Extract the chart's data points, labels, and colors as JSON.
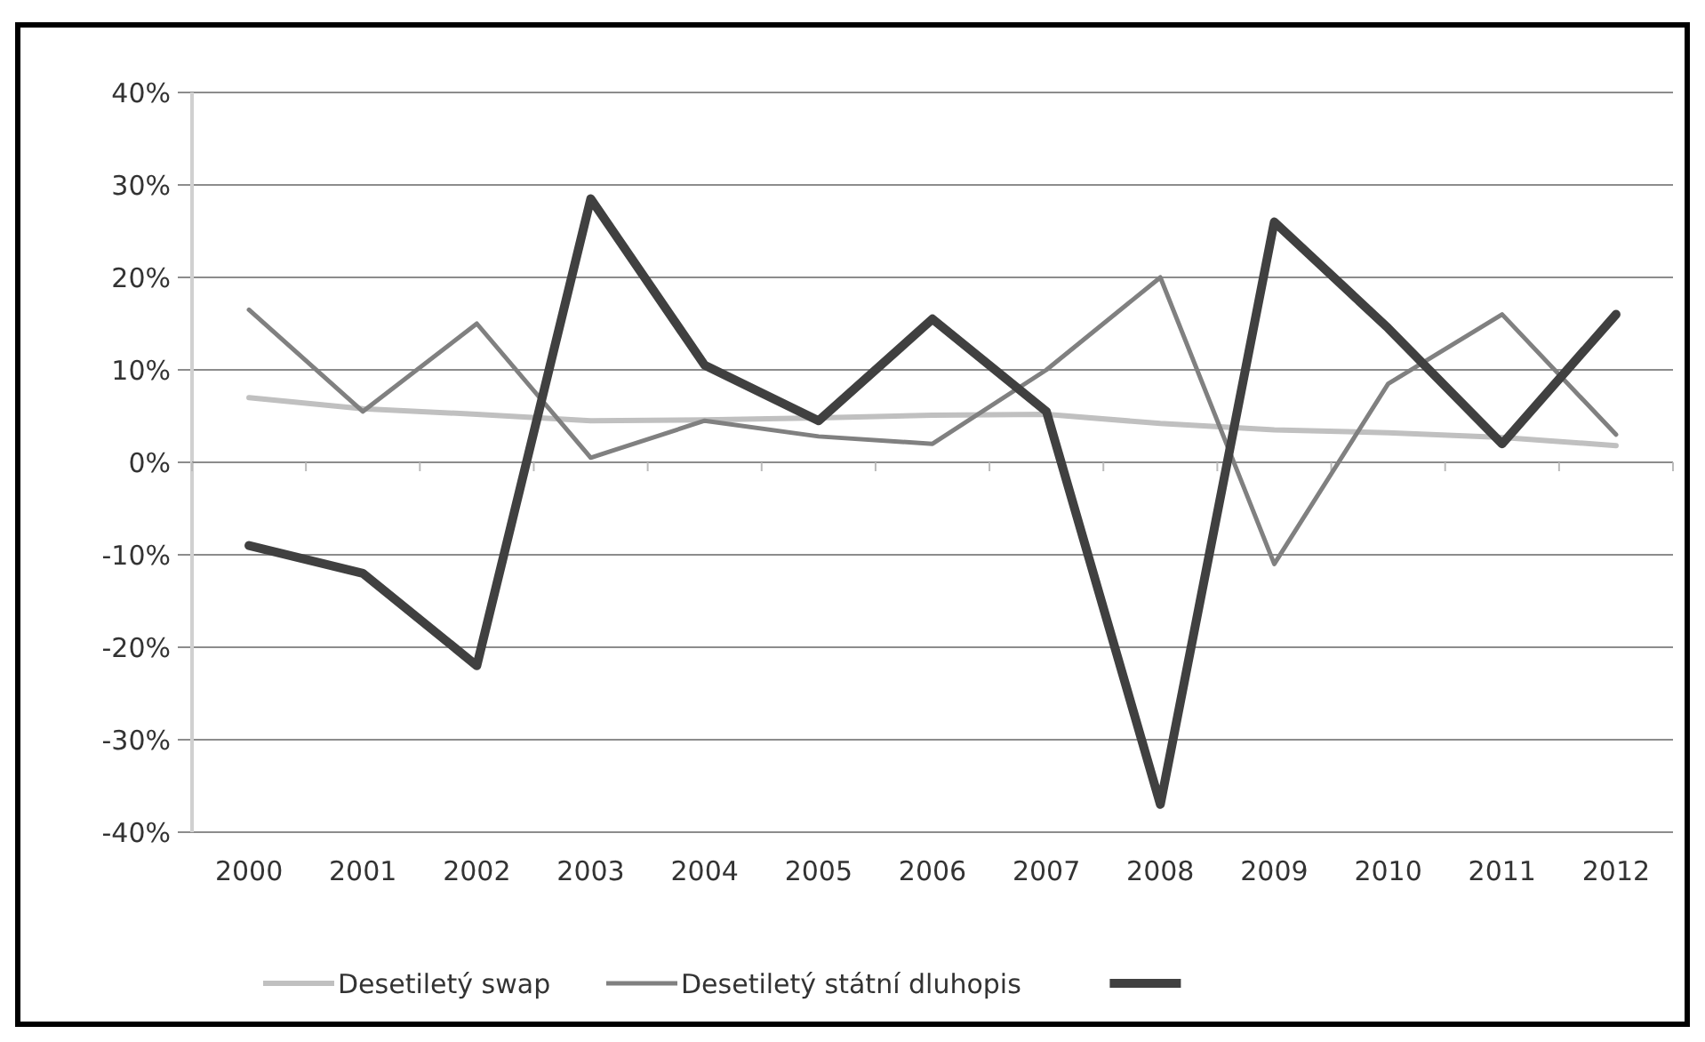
{
  "chart_data": {
    "type": "line",
    "categories": [
      "2000",
      "2001",
      "2002",
      "2003",
      "2004",
      "2005",
      "2006",
      "2007",
      "2008",
      "2009",
      "2010",
      "2011",
      "2012"
    ],
    "series": [
      {
        "name": "Desetiletý swap",
        "color": "#c0c0c0",
        "values": [
          0.07,
          0.058,
          0.052,
          0.045,
          0.046,
          0.048,
          0.051,
          0.052,
          0.042,
          0.035,
          0.032,
          0.027,
          0.018
        ]
      },
      {
        "name": "Desetiletý státní dluhopis",
        "color": "#808080",
        "values": [
          0.165,
          0.055,
          0.15,
          0.005,
          0.045,
          0.028,
          0.02,
          0.1,
          0.2,
          -0.11,
          0.085,
          0.16,
          0.03
        ]
      },
      {
        "color": "#404040",
        "values": [
          -0.09,
          -0.12,
          -0.22,
          0.285,
          0.105,
          0.045,
          0.155,
          0.055,
          -0.37,
          0.26,
          0.145,
          0.02,
          0.16
        ]
      }
    ],
    "ylim": [
      -0.4,
      0.4
    ],
    "yticks": [
      {
        "value": -0.4,
        "label": "-40%"
      },
      {
        "value": -0.3,
        "label": "-30%"
      },
      {
        "value": -0.2,
        "label": "-20%"
      },
      {
        "value": -0.1,
        "label": "-10%"
      },
      {
        "value": 0,
        "label": "0%"
      },
      {
        "value": 0.1,
        "label": "10%"
      },
      {
        "value": 0.2,
        "label": "20%"
      },
      {
        "value": 0.3,
        "label": "30%"
      },
      {
        "value": 0.4,
        "label": "40%"
      }
    ],
    "grid": "y",
    "legend": "bottom",
    "marker": "none",
    "line_style": "solid"
  }
}
